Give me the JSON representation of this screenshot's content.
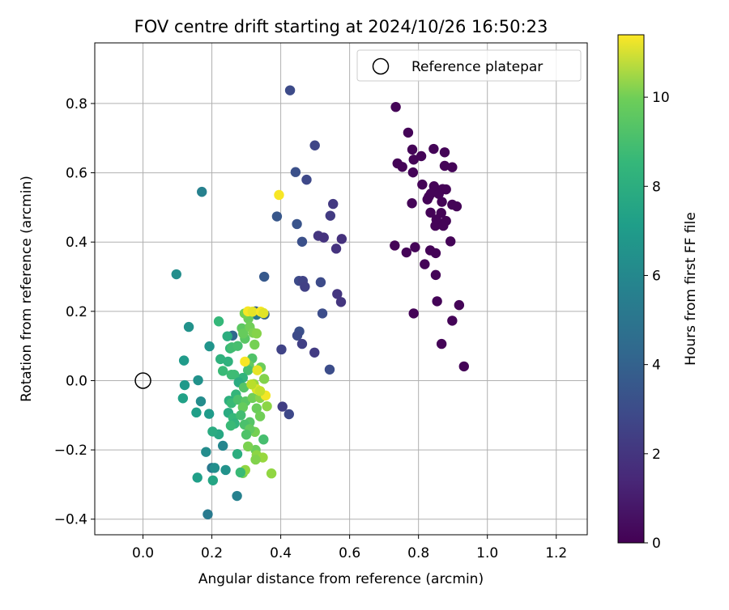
{
  "chart_data": {
    "type": "scatter",
    "title": "FOV centre drift starting at 2024/10/26 16:50:23",
    "xlabel": "Angular distance from reference (arcmin)",
    "ylabel": "Rotation from reference (arcmin)",
    "xlim": [
      -0.14,
      1.29
    ],
    "ylim": [
      -0.445,
      0.975
    ],
    "xticks": [
      0.0,
      0.2,
      0.4,
      0.6,
      0.8,
      1.0,
      1.2
    ],
    "xtick_labels": [
      "0.0",
      "0.2",
      "0.4",
      "0.6",
      "0.8",
      "1.0",
      "1.2"
    ],
    "yticks": [
      -0.4,
      -0.2,
      0.0,
      0.2,
      0.4,
      0.6,
      0.8
    ],
    "ytick_labels": [
      "−0.4",
      "−0.2",
      "0.0",
      "0.2",
      "0.4",
      "0.6",
      "0.8"
    ],
    "grid": true,
    "legend": {
      "position": "top-right",
      "entries": [
        {
          "label": "Reference platepar",
          "marker": "open-circle"
        }
      ]
    },
    "reference_point": {
      "x": 0.0,
      "y": 0.0
    },
    "colorbar": {
      "label": "Hours from first FF file",
      "colormap": "viridis",
      "range": [
        0,
        11.4
      ],
      "ticks": [
        0,
        2,
        4,
        6,
        8,
        10
      ],
      "tick_labels": [
        "0",
        "2",
        "4",
        "6",
        "8",
        "10"
      ]
    },
    "points": [
      [
        0.734,
        0.79,
        0.1
      ],
      [
        0.77,
        0.716,
        0.1
      ],
      [
        0.739,
        0.627,
        0.1
      ],
      [
        0.753,
        0.617,
        0.1
      ],
      [
        0.782,
        0.667,
        0.1
      ],
      [
        0.786,
        0.638,
        0.1
      ],
      [
        0.808,
        0.648,
        0.1
      ],
      [
        0.784,
        0.601,
        0.1
      ],
      [
        0.844,
        0.669,
        0.1
      ],
      [
        0.876,
        0.659,
        0.1
      ],
      [
        0.876,
        0.62,
        0.1
      ],
      [
        0.898,
        0.616,
        0.1
      ],
      [
        0.811,
        0.566,
        0.1
      ],
      [
        0.83,
        0.531,
        0.1
      ],
      [
        0.845,
        0.561,
        0.1
      ],
      [
        0.87,
        0.553,
        0.1
      ],
      [
        0.88,
        0.552,
        0.1
      ],
      [
        0.859,
        0.539,
        0.1
      ],
      [
        0.826,
        0.523,
        0.1
      ],
      [
        0.836,
        0.54,
        0.1
      ],
      [
        0.781,
        0.512,
        0.1
      ],
      [
        0.868,
        0.516,
        0.1
      ],
      [
        0.898,
        0.508,
        0.1
      ],
      [
        0.911,
        0.503,
        0.1
      ],
      [
        0.835,
        0.485,
        0.1
      ],
      [
        0.866,
        0.484,
        0.1
      ],
      [
        0.852,
        0.465,
        0.1
      ],
      [
        0.88,
        0.461,
        0.1
      ],
      [
        0.849,
        0.447,
        0.1
      ],
      [
        0.872,
        0.447,
        0.1
      ],
      [
        0.893,
        0.402,
        0.1
      ],
      [
        0.731,
        0.39,
        0.1
      ],
      [
        0.79,
        0.385,
        0.1
      ],
      [
        0.834,
        0.376,
        0.1
      ],
      [
        0.85,
        0.368,
        0.1
      ],
      [
        0.765,
        0.37,
        0.1
      ],
      [
        0.818,
        0.336,
        0.1
      ],
      [
        0.85,
        0.305,
        0.1
      ],
      [
        0.854,
        0.229,
        0.1
      ],
      [
        0.918,
        0.218,
        0.1
      ],
      [
        0.786,
        0.194,
        0.1
      ],
      [
        0.898,
        0.173,
        0.1
      ],
      [
        0.867,
        0.106,
        0.1
      ],
      [
        0.932,
        0.041,
        0.1
      ],
      [
        0.427,
        0.838,
        2.6
      ],
      [
        0.499,
        0.679,
        2.4
      ],
      [
        0.443,
        0.602,
        2.8
      ],
      [
        0.475,
        0.58,
        2.5
      ],
      [
        0.552,
        0.51,
        1.9
      ],
      [
        0.544,
        0.476,
        2.0
      ],
      [
        0.389,
        0.474,
        3.1
      ],
      [
        0.447,
        0.452,
        3.0
      ],
      [
        0.509,
        0.418,
        1.8
      ],
      [
        0.525,
        0.413,
        1.7
      ],
      [
        0.577,
        0.409,
        1.6
      ],
      [
        0.462,
        0.401,
        2.8
      ],
      [
        0.561,
        0.381,
        1.7
      ],
      [
        0.352,
        0.3,
        3.2
      ],
      [
        0.453,
        0.288,
        2.6
      ],
      [
        0.464,
        0.288,
        2.3
      ],
      [
        0.47,
        0.271,
        2.2
      ],
      [
        0.516,
        0.284,
        2.6
      ],
      [
        0.564,
        0.25,
        1.8
      ],
      [
        0.575,
        0.227,
        1.8
      ],
      [
        0.521,
        0.194,
        2.7
      ],
      [
        0.305,
        0.187,
        3.3
      ],
      [
        0.454,
        0.142,
        2.8
      ],
      [
        0.448,
        0.13,
        2.6
      ],
      [
        0.462,
        0.106,
        2.2
      ],
      [
        0.498,
        0.081,
        2.0
      ],
      [
        0.402,
        0.09,
        2.3
      ],
      [
        0.542,
        0.032,
        2.7
      ],
      [
        0.405,
        -0.075,
        2.1
      ],
      [
        0.424,
        -0.097,
        2.5
      ],
      [
        0.353,
        0.191,
        3.5
      ],
      [
        0.327,
        0.2,
        3.4
      ],
      [
        0.26,
        0.13,
        3.8
      ],
      [
        0.33,
        0.19,
        4.6
      ],
      [
        0.097,
        0.307,
        5.6
      ],
      [
        0.171,
        0.545,
        5.0
      ],
      [
        0.133,
        0.155,
        5.8
      ],
      [
        0.22,
        0.171,
        7.6
      ],
      [
        0.119,
        0.058,
        6.2
      ],
      [
        0.193,
        0.099,
        5.9
      ],
      [
        0.121,
        -0.013,
        6.1
      ],
      [
        0.16,
        0.001,
        5.8
      ],
      [
        0.116,
        -0.051,
        6.5
      ],
      [
        0.168,
        -0.06,
        5.5
      ],
      [
        0.155,
        -0.092,
        6.4
      ],
      [
        0.192,
        -0.096,
        6.2
      ],
      [
        0.22,
        -0.155,
        6.8
      ],
      [
        0.202,
        -0.147,
        7.0
      ],
      [
        0.183,
        -0.206,
        5.5
      ],
      [
        0.232,
        -0.188,
        5.2
      ],
      [
        0.2,
        -0.252,
        4.6
      ],
      [
        0.24,
        -0.258,
        5.8
      ],
      [
        0.158,
        -0.28,
        6.4
      ],
      [
        0.203,
        -0.288,
        6.7
      ],
      [
        0.273,
        -0.333,
        5.0
      ],
      [
        0.188,
        -0.386,
        4.7
      ],
      [
        0.274,
        -0.212,
        7.1
      ],
      [
        0.208,
        -0.252,
        5.6
      ],
      [
        0.225,
        0.062,
        7.3
      ],
      [
        0.245,
        0.128,
        7.1
      ],
      [
        0.253,
        0.093,
        7.6
      ],
      [
        0.258,
        0.096,
        7.9
      ],
      [
        0.247,
        0.055,
        7.3
      ],
      [
        0.232,
        0.028,
        7.7
      ],
      [
        0.257,
        0.017,
        7.8
      ],
      [
        0.275,
        0.1,
        8.0
      ],
      [
        0.296,
        0.121,
        8.4
      ],
      [
        0.287,
        0.151,
        8.5
      ],
      [
        0.291,
        0.136,
        8.7
      ],
      [
        0.306,
        0.179,
        8.8
      ],
      [
        0.295,
        0.194,
        9.0
      ],
      [
        0.31,
        0.155,
        8.9
      ],
      [
        0.32,
        0.138,
        9.1
      ],
      [
        0.33,
        0.136,
        9.3
      ],
      [
        0.324,
        0.104,
        9.0
      ],
      [
        0.317,
        0.064,
        8.2
      ],
      [
        0.308,
        0.044,
        8.6
      ],
      [
        0.342,
        0.038,
        8.8
      ],
      [
        0.352,
        0.005,
        9.2
      ],
      [
        0.305,
        0.03,
        8.0
      ],
      [
        0.29,
        0.008,
        7.4
      ],
      [
        0.265,
        0.017,
        7.8
      ],
      [
        0.278,
        -0.005,
        7.0
      ],
      [
        0.293,
        -0.02,
        8.3
      ],
      [
        0.322,
        -0.01,
        9.6
      ],
      [
        0.27,
        -0.04,
        7.5
      ],
      [
        0.25,
        -0.058,
        7.2
      ],
      [
        0.257,
        -0.065,
        7.7
      ],
      [
        0.276,
        -0.055,
        8.1
      ],
      [
        0.298,
        -0.06,
        8.4
      ],
      [
        0.318,
        -0.05,
        8.9
      ],
      [
        0.34,
        -0.05,
        9.3
      ],
      [
        0.29,
        -0.077,
        8.7
      ],
      [
        0.33,
        -0.08,
        8.8
      ],
      [
        0.36,
        -0.074,
        9.4
      ],
      [
        0.248,
        -0.093,
        7.0
      ],
      [
        0.262,
        -0.108,
        7.6
      ],
      [
        0.284,
        -0.1,
        7.9
      ],
      [
        0.31,
        -0.12,
        8.3
      ],
      [
        0.34,
        -0.103,
        8.9
      ],
      [
        0.266,
        -0.124,
        7.4
      ],
      [
        0.295,
        -0.127,
        8.1
      ],
      [
        0.255,
        -0.13,
        7.7
      ],
      [
        0.325,
        -0.148,
        9.0
      ],
      [
        0.31,
        -0.14,
        8.6
      ],
      [
        0.3,
        -0.156,
        8.2
      ],
      [
        0.327,
        -0.2,
        8.8
      ],
      [
        0.305,
        -0.19,
        9.1
      ],
      [
        0.33,
        -0.215,
        9.4
      ],
      [
        0.348,
        -0.222,
        9.6
      ],
      [
        0.327,
        -0.228,
        9.2
      ],
      [
        0.29,
        -0.267,
        9.0
      ],
      [
        0.297,
        -0.258,
        9.5
      ],
      [
        0.373,
        -0.268,
        9.5
      ],
      [
        0.283,
        -0.265,
        7.7
      ],
      [
        0.35,
        -0.17,
        8.0
      ],
      [
        0.395,
        0.536,
        11.3
      ],
      [
        0.296,
        0.055,
        11.3
      ],
      [
        0.305,
        0.2,
        11.3
      ],
      [
        0.318,
        0.199,
        11.0
      ],
      [
        0.342,
        0.199,
        11.3
      ],
      [
        0.35,
        0.195,
        10.9
      ],
      [
        0.332,
        0.03,
        11.0
      ],
      [
        0.33,
        -0.025,
        10.8
      ],
      [
        0.356,
        -0.043,
        11.2
      ],
      [
        0.315,
        -0.011,
        10.2
      ],
      [
        0.34,
        -0.03,
        10.4
      ]
    ]
  }
}
